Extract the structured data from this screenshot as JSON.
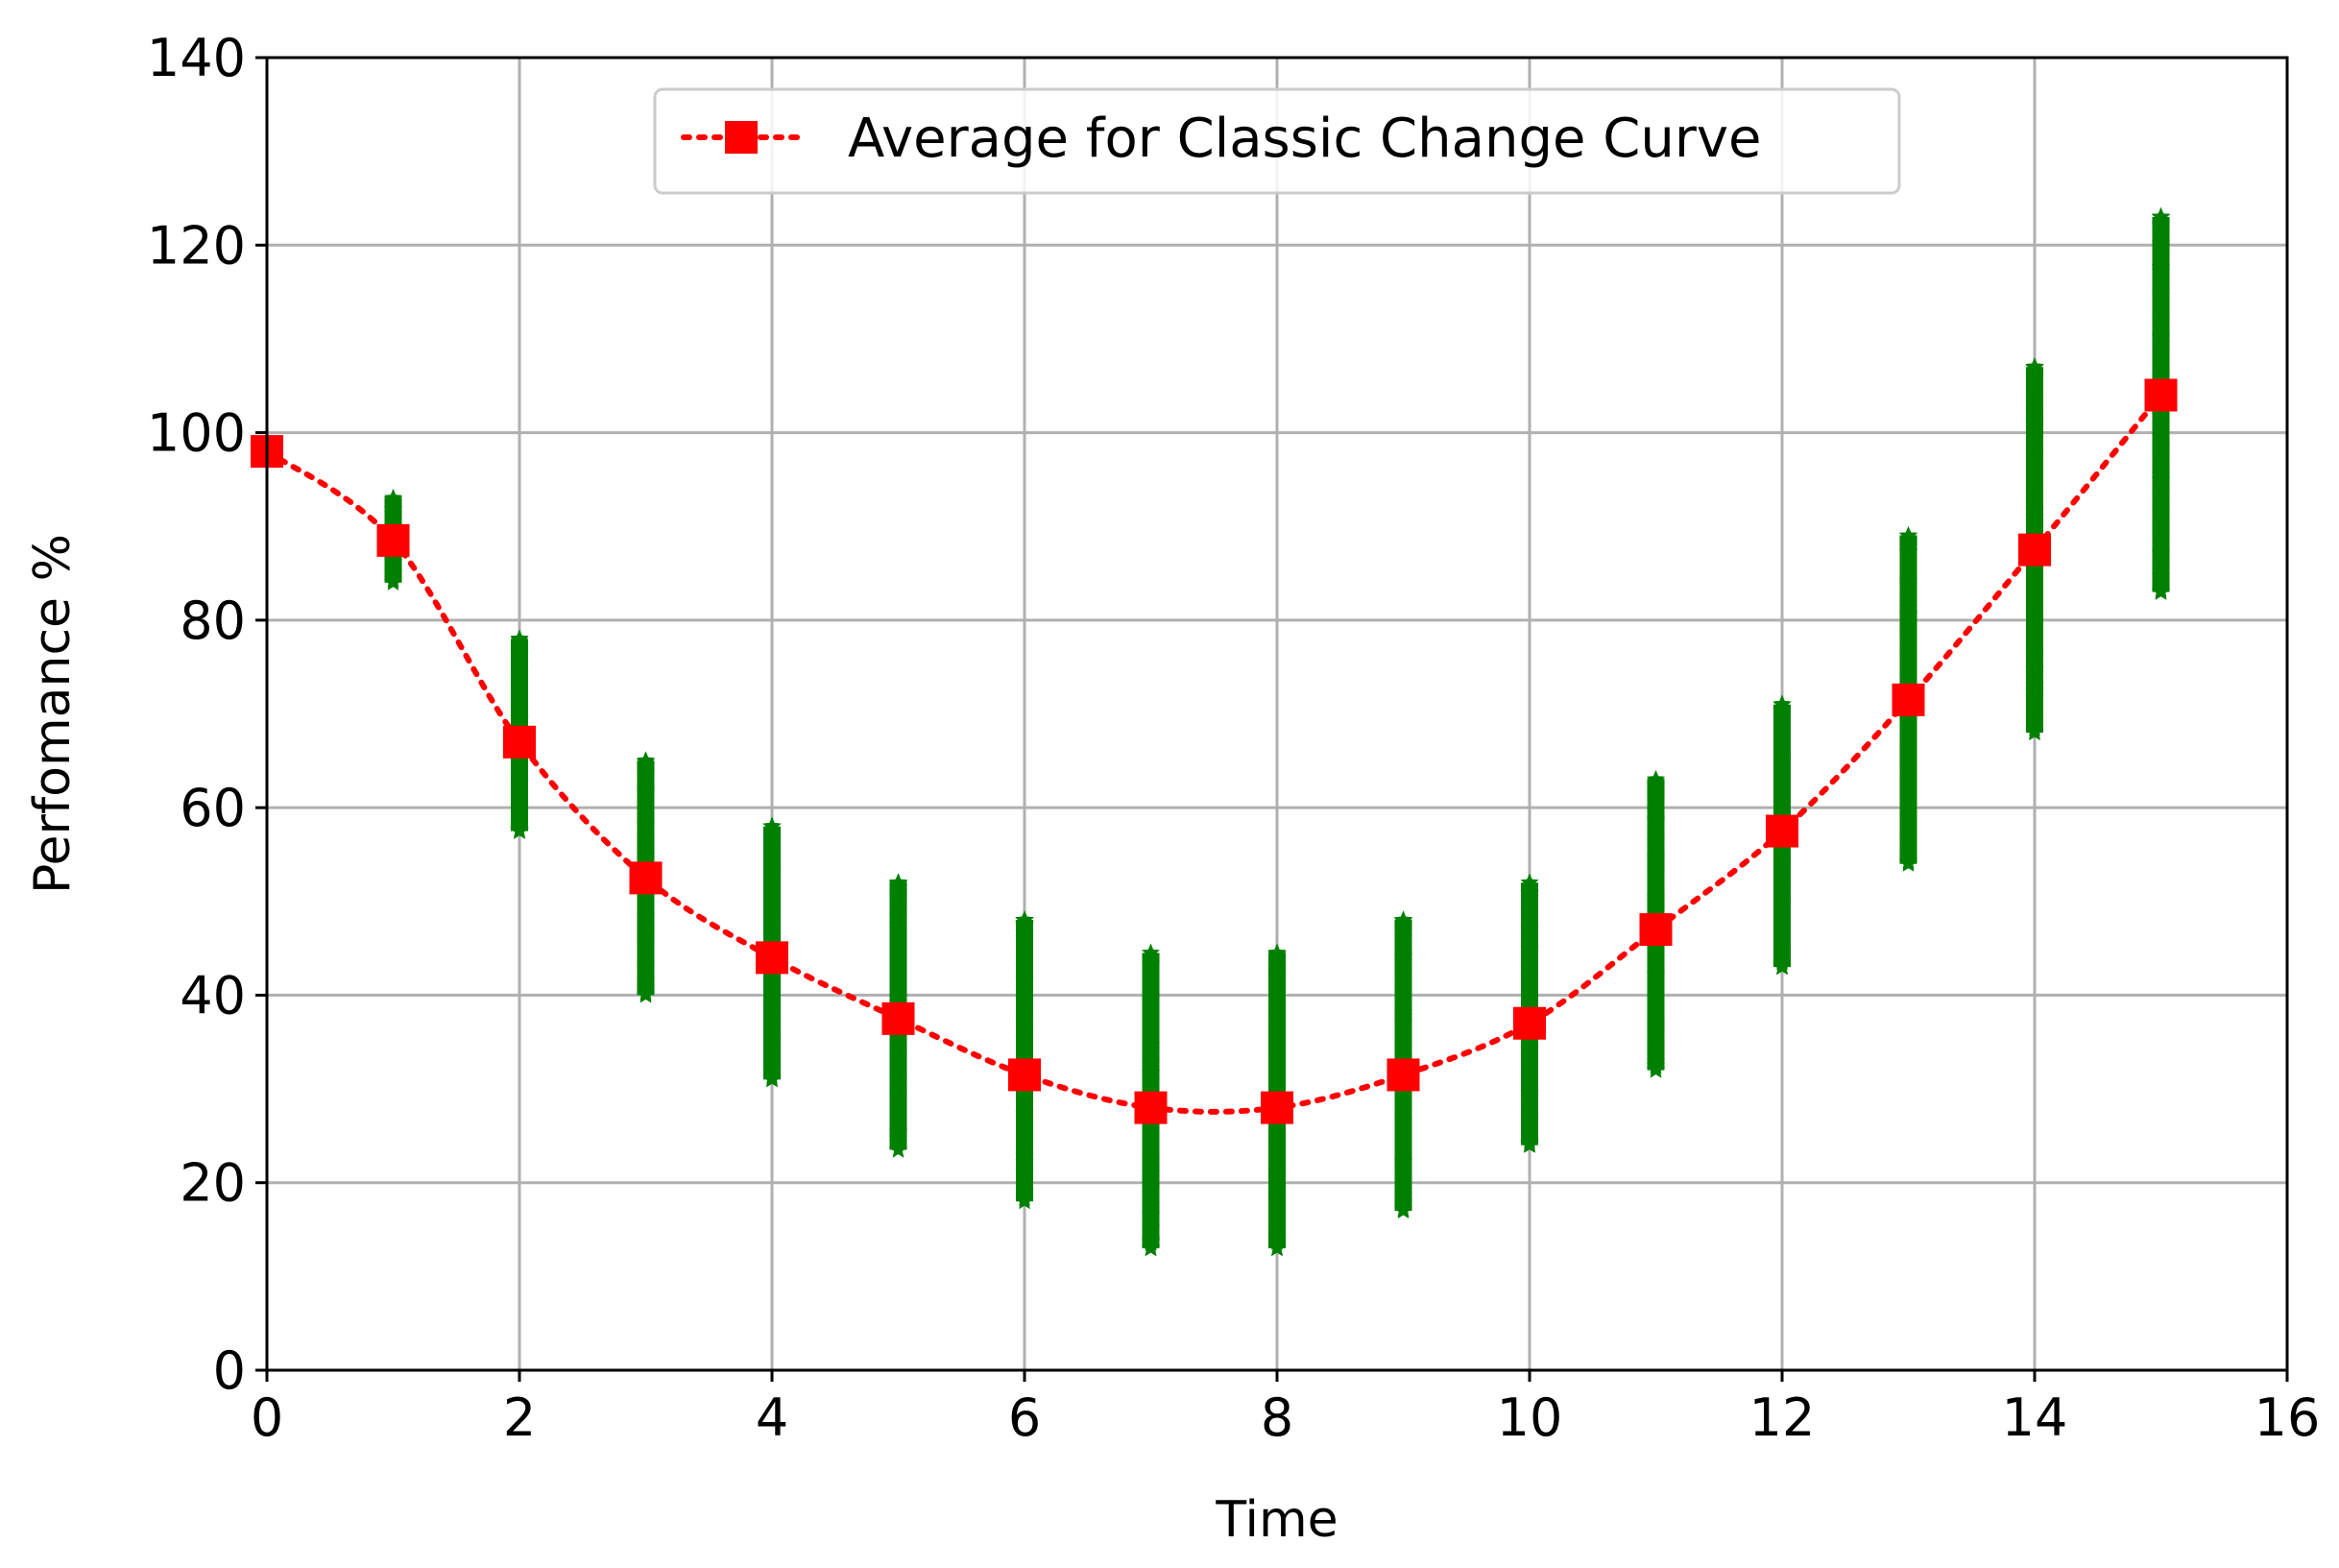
{
  "chart_data": {
    "type": "scatter",
    "title": "",
    "xlabel": "Time",
    "ylabel": "Perfomance %",
    "xlim": [
      0,
      16
    ],
    "ylim": [
      0,
      140
    ],
    "xticks": [
      0,
      2,
      4,
      6,
      8,
      10,
      12,
      14,
      16
    ],
    "yticks": [
      0,
      20,
      40,
      60,
      80,
      100,
      120,
      140
    ],
    "grid": true,
    "legend": {
      "placement": "upper center",
      "entries": [
        "Average for Classic Change Curve"
      ]
    },
    "series": [
      {
        "name": "Average for Classic Change Curve",
        "style": "dotted line with square markers",
        "color": "#ff0000",
        "x": [
          0,
          1,
          2,
          3,
          4,
          5,
          6,
          7,
          8,
          9,
          10,
          11,
          12,
          13,
          14,
          15
        ],
        "y": [
          98,
          88.5,
          67,
          52.5,
          44,
          37.5,
          31.5,
          28,
          28,
          31.5,
          37,
          47,
          57.5,
          71.5,
          87.5,
          104
        ]
      },
      {
        "style": "star markers",
        "color": "#008000",
        "spread": [
          {
            "x": 1,
            "min": 84,
            "max": 93
          },
          {
            "x": 2,
            "min": 57.5,
            "max": 78
          },
          {
            "x": 3,
            "min": 40,
            "max": 65
          },
          {
            "x": 4,
            "min": 31,
            "max": 58
          },
          {
            "x": 5,
            "min": 23.5,
            "max": 52
          },
          {
            "x": 6,
            "min": 18,
            "max": 48
          },
          {
            "x": 7,
            "min": 13,
            "max": 44.5
          },
          {
            "x": 8,
            "min": 13,
            "max": 44.5
          },
          {
            "x": 9,
            "min": 17,
            "max": 48
          },
          {
            "x": 10,
            "min": 24,
            "max": 52
          },
          {
            "x": 11,
            "min": 32,
            "max": 63
          },
          {
            "x": 12,
            "min": 43,
            "max": 71
          },
          {
            "x": 13,
            "min": 54,
            "max": 89
          },
          {
            "x": 14,
            "min": 68,
            "max": 107
          },
          {
            "x": 15,
            "min": 83,
            "max": 123
          }
        ]
      }
    ]
  }
}
